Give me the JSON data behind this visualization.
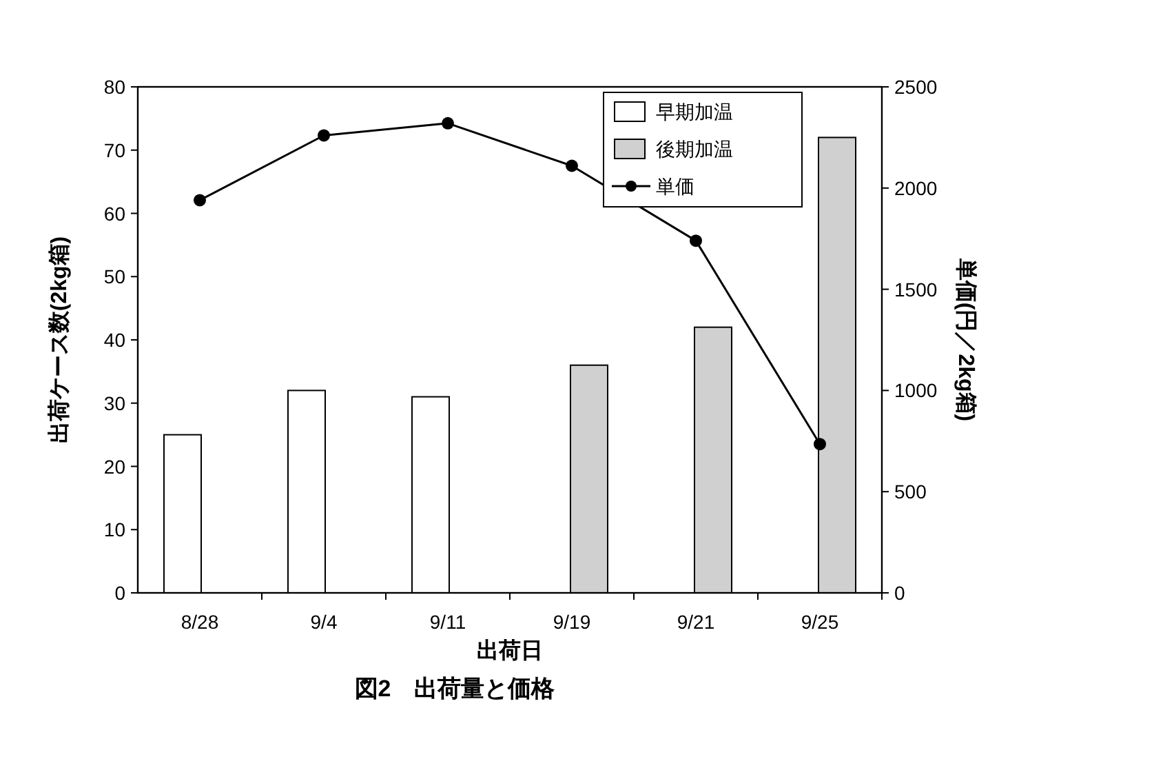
{
  "chart_data": {
    "type": "bar",
    "title": "図2　出荷量と価格",
    "xlabel": "出荷日",
    "ylabel": "出荷ケース数(2kg箱)",
    "y2label": "単価(円／2kg箱)",
    "categories": [
      "8/28",
      "9/4",
      "9/11",
      "9/19",
      "9/21",
      "9/25"
    ],
    "series": [
      {
        "name": "早期加温",
        "color": "#ffffff",
        "values": [
          25,
          32,
          31,
          null,
          null,
          null
        ]
      },
      {
        "name": "後期加温",
        "color": "#d0d0d0",
        "values": [
          null,
          null,
          null,
          36,
          42,
          72
        ]
      },
      {
        "name": "単価",
        "type": "line",
        "axis": "y2",
        "marker": "circle",
        "color": "#000000",
        "values": [
          1940,
          2260,
          2320,
          2110,
          1740,
          735
        ]
      }
    ],
    "ylim": [
      0,
      80
    ],
    "yticks": [
      0,
      10,
      20,
      30,
      40,
      50,
      60,
      70,
      80
    ],
    "y2lim": [
      0,
      2500
    ],
    "y2ticks": [
      0,
      500,
      1000,
      1500,
      2000,
      2500
    ],
    "grid": false,
    "legend": "top right"
  }
}
